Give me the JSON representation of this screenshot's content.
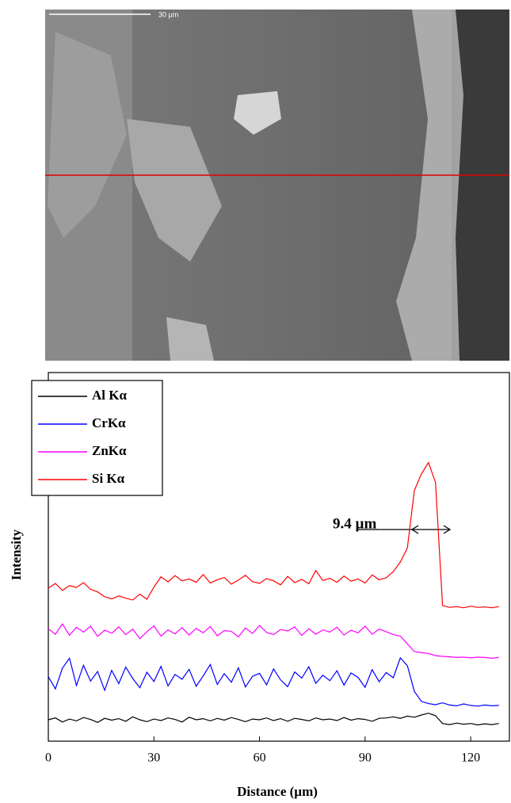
{
  "image": {
    "scale_bar_label": "30 µm"
  },
  "chart_data": {
    "type": "line",
    "x_label": "Distance (µm)",
    "y_label": "Intensity",
    "annotation": "9.4 µm",
    "legend": "upper left",
    "xlim": [
      0,
      131
    ],
    "ylim": [
      0,
      100
    ],
    "xticks": [
      0,
      30,
      60,
      90,
      120
    ],
    "x": [
      0,
      2,
      4,
      6,
      8,
      10,
      12,
      14,
      16,
      18,
      20,
      22,
      24,
      26,
      28,
      30,
      32,
      34,
      36,
      38,
      40,
      42,
      44,
      46,
      48,
      50,
      52,
      54,
      56,
      58,
      60,
      62,
      64,
      66,
      68,
      70,
      72,
      74,
      76,
      78,
      80,
      82,
      84,
      86,
      88,
      90,
      92,
      94,
      96,
      98,
      100,
      102,
      104,
      106,
      108,
      110,
      112,
      114,
      116,
      118,
      120,
      122,
      124,
      126,
      128
    ],
    "series": [
      {
        "name": "Al Kα",
        "color": "#000000",
        "values": [
          5.8,
          6.3,
          5.2,
          6.0,
          5.5,
          6.4,
          5.9,
          5.1,
          6.2,
          5.7,
          6.1,
          5.4,
          6.6,
          5.8,
          5.3,
          6.0,
          5.6,
          6.3,
          5.9,
          5.2,
          6.5,
          5.8,
          6.1,
          5.5,
          6.2,
          5.7,
          6.4,
          5.9,
          5.3,
          6.0,
          5.8,
          6.3,
          5.6,
          6.1,
          5.4,
          6.2,
          5.9,
          5.5,
          6.3,
          5.8,
          6.0,
          5.6,
          6.4,
          5.7,
          6.1,
          5.9,
          5.4,
          6.2,
          6.3,
          6.6,
          6.2,
          6.8,
          6.5,
          7.1,
          7.6,
          6.9,
          4.8,
          4.5,
          4.9,
          4.6,
          4.8,
          4.4,
          4.7,
          4.5,
          4.8
        ]
      },
      {
        "name": "CrKα",
        "color": "#0000ff",
        "values": [
          17.5,
          14.2,
          19.8,
          22.5,
          15.1,
          20.6,
          16.3,
          18.9,
          13.8,
          19.2,
          15.6,
          20.1,
          17.0,
          14.5,
          18.7,
          16.2,
          20.3,
          15.0,
          18.1,
          16.8,
          19.5,
          14.9,
          17.7,
          20.8,
          15.4,
          18.3,
          16.0,
          19.9,
          14.7,
          17.6,
          18.4,
          15.3,
          19.6,
          16.6,
          14.8,
          18.8,
          17.1,
          20.2,
          15.7,
          17.9,
          16.4,
          19.1,
          15.2,
          18.5,
          17.3,
          14.6,
          19.4,
          16.1,
          18.6,
          17.2,
          22.6,
          20.5,
          13.5,
          10.8,
          10.2,
          9.9,
          10.4,
          9.8,
          9.6,
          10.1,
          9.7,
          9.5,
          9.8,
          9.6,
          9.7
        ]
      },
      {
        "name": "ZnKα",
        "color": "#ff00ff",
        "values": [
          30.5,
          29.0,
          31.8,
          28.7,
          30.9,
          29.6,
          31.2,
          28.4,
          30.1,
          29.3,
          31.0,
          28.9,
          30.4,
          27.8,
          29.7,
          31.3,
          28.5,
          30.2,
          29.1,
          30.8,
          28.8,
          30.6,
          29.4,
          31.1,
          28.6,
          30.0,
          29.8,
          28.3,
          30.7,
          29.2,
          31.4,
          29.5,
          28.9,
          30.3,
          29.9,
          31.0,
          28.7,
          30.5,
          29.0,
          30.2,
          29.6,
          30.9,
          28.8,
          30.1,
          29.4,
          31.2,
          29.0,
          30.4,
          29.7,
          28.9,
          28.5,
          26.4,
          24.3,
          24.0,
          23.8,
          23.2,
          23.0,
          22.9,
          22.7,
          22.8,
          22.6,
          22.8,
          22.7,
          22.5,
          22.7
        ]
      },
      {
        "name": "Si Kα",
        "color": "#ff0000",
        "values": [
          41.5,
          42.8,
          40.9,
          42.2,
          41.7,
          43.0,
          41.2,
          40.5,
          39.2,
          38.6,
          39.4,
          38.8,
          38.3,
          39.9,
          38.5,
          41.8,
          44.6,
          43.2,
          44.9,
          43.5,
          44.0,
          43.1,
          45.2,
          42.9,
          43.8,
          44.4,
          42.6,
          43.7,
          45.0,
          43.3,
          42.8,
          44.1,
          43.5,
          42.4,
          44.7,
          43.0,
          43.9,
          42.7,
          46.3,
          43.6,
          44.2,
          43.1,
          44.8,
          43.4,
          44.0,
          42.9,
          45.1,
          43.8,
          44.3,
          46.0,
          48.6,
          52.4,
          68.0,
          72.5,
          75.6,
          70.2,
          36.8,
          36.3,
          36.5,
          36.2,
          36.6,
          36.3,
          36.4,
          36.2,
          36.5
        ]
      }
    ]
  }
}
